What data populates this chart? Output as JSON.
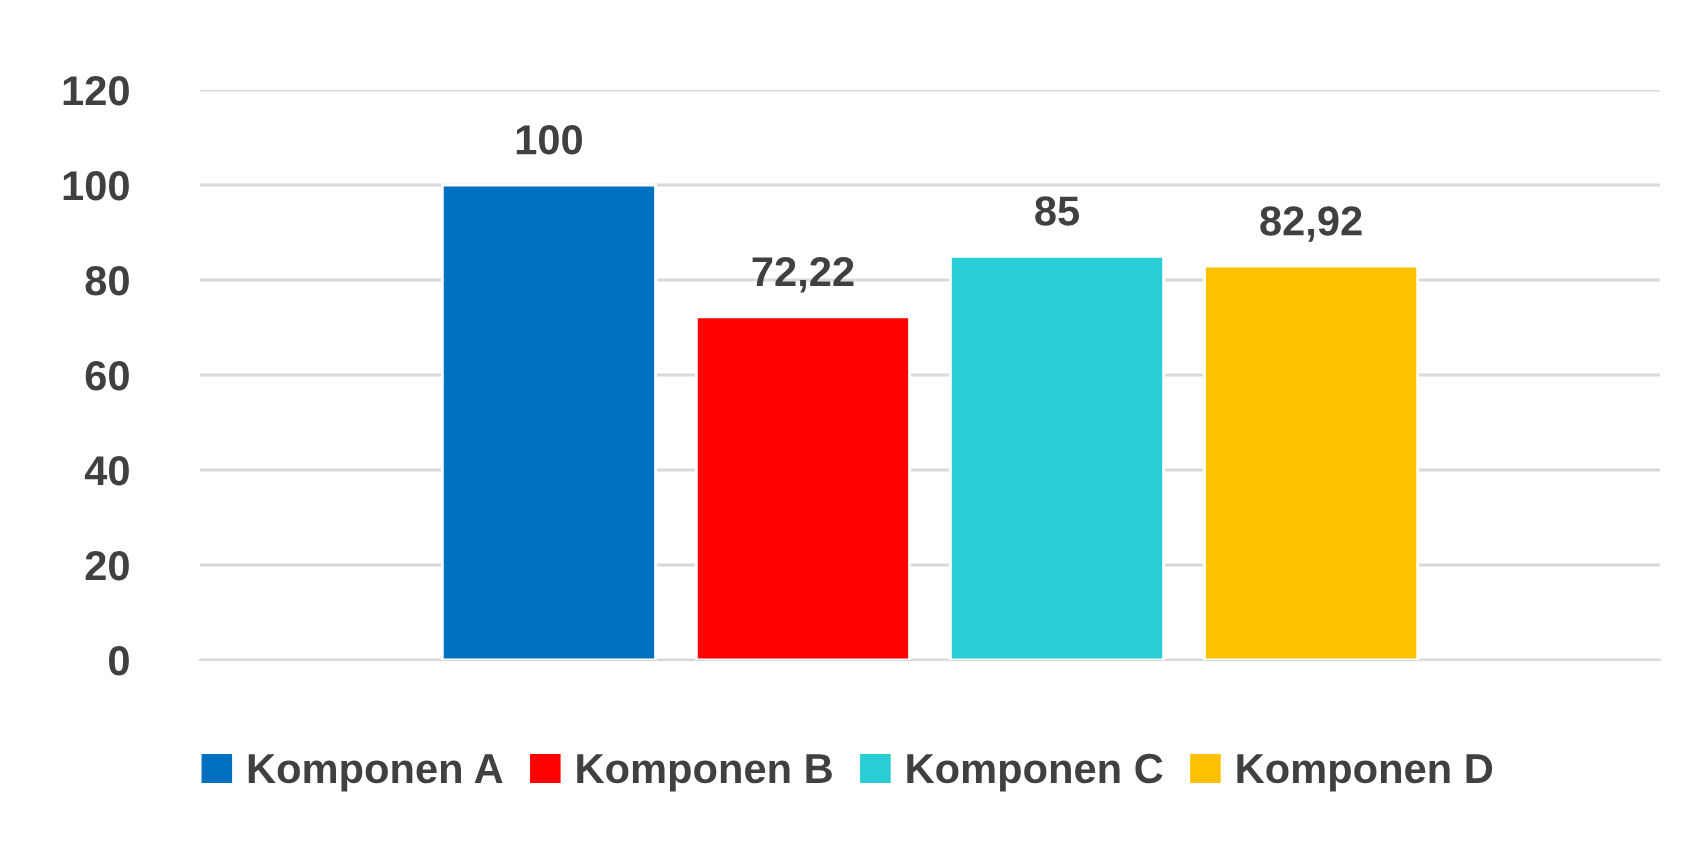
{
  "chart_data": {
    "type": "bar",
    "categories": [
      null
    ],
    "series": [
      {
        "name": "Komponen A",
        "color": "#0070c0",
        "values": [
          100
        ],
        "value_labels": [
          "100"
        ]
      },
      {
        "name": "Komponen B",
        "color": "#ff0000",
        "values": [
          72.22
        ],
        "value_labels": [
          "72,22"
        ]
      },
      {
        "name": "Komponen C",
        "color": "#29cdd6",
        "values": [
          85
        ],
        "value_labels": [
          "85"
        ]
      },
      {
        "name": "Komponen D",
        "color": "#ffc000",
        "values": [
          82.92
        ],
        "value_labels": [
          "82,92"
        ]
      }
    ],
    "ylim": [
      0,
      120
    ],
    "yticks": [
      0,
      20,
      40,
      60,
      80,
      100,
      120
    ],
    "grid": "y",
    "legend": "bottom"
  }
}
